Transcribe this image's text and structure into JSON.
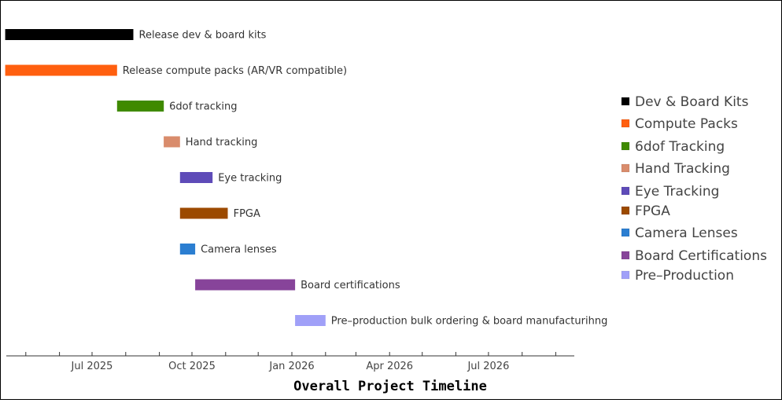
{
  "chart_data": {
    "type": "gantt",
    "title": "",
    "xlabel": "Overall Project Timeline",
    "ylabel": "",
    "x_range": [
      "2025-04-01",
      "2026-10-01"
    ],
    "ticks": [
      {
        "date": "2025-05-01",
        "label": ""
      },
      {
        "date": "2025-06-01",
        "label": ""
      },
      {
        "date": "2025-07-01",
        "label": "Jul 2025"
      },
      {
        "date": "2025-08-01",
        "label": ""
      },
      {
        "date": "2025-09-01",
        "label": ""
      },
      {
        "date": "2025-10-01",
        "label": "Oct 2025"
      },
      {
        "date": "2025-11-01",
        "label": ""
      },
      {
        "date": "2025-12-01",
        "label": ""
      },
      {
        "date": "2026-01-01",
        "label": "Jan 2026"
      },
      {
        "date": "2026-02-01",
        "label": ""
      },
      {
        "date": "2026-03-01",
        "label": ""
      },
      {
        "date": "2026-04-01",
        "label": "Apr 2026"
      },
      {
        "date": "2026-05-01",
        "label": ""
      },
      {
        "date": "2026-06-01",
        "label": ""
      },
      {
        "date": "2026-07-01",
        "label": "Jul 2026"
      },
      {
        "date": "2026-08-01",
        "label": ""
      },
      {
        "date": "2026-09-01",
        "label": ""
      }
    ],
    "tasks": [
      {
        "label": "Release dev & board kits",
        "start": "2025-04-12",
        "end": "2025-08-08",
        "color": "#000000"
      },
      {
        "label": "Release compute packs (AR/VR compatible)",
        "start": "2025-04-12",
        "end": "2025-07-24",
        "color": "#ff5f0f"
      },
      {
        "label": "6dof tracking",
        "start": "2025-07-24",
        "end": "2025-09-05",
        "color": "#3f8a00"
      },
      {
        "label": "Hand tracking",
        "start": "2025-09-05",
        "end": "2025-09-20",
        "color": "#d98c6c"
      },
      {
        "label": "Eye tracking",
        "start": "2025-09-20",
        "end": "2025-10-20",
        "color": "#5e4bb8"
      },
      {
        "label": "FPGA",
        "start": "2025-09-20",
        "end": "2025-11-03",
        "color": "#9c4a00"
      },
      {
        "label": "Camera lenses",
        "start": "2025-09-20",
        "end": "2025-10-04",
        "color": "#2b7ed1"
      },
      {
        "label": "Board certifications",
        "start": "2025-10-04",
        "end": "2026-01-04",
        "color": "#87449a"
      },
      {
        "label": "Pre–production bulk ordering & board manufacturihng",
        "start": "2026-01-04",
        "end": "2026-02-01",
        "color": "#a0a0f8"
      }
    ],
    "legend": {
      "position": "right",
      "entries": [
        {
          "label": "Dev & Board Kits",
          "color": "#000000"
        },
        {
          "label": "Compute Packs",
          "color": "#ff5f0f"
        },
        {
          "label": "6dof Tracking",
          "color": "#3f8a00"
        },
        {
          "label": "Hand Tracking",
          "color": "#d98c6c"
        },
        {
          "label": "Eye Tracking",
          "color": "#5e4bb8"
        },
        {
          "label": "FPGA",
          "color": "#9c4a00"
        },
        {
          "label": "Camera Lenses",
          "color": "#2b7ed1"
        },
        {
          "label": "Board Certifications",
          "color": "#87449a"
        },
        {
          "label": "Pre–Production",
          "color": "#a0a0f8"
        }
      ]
    }
  }
}
